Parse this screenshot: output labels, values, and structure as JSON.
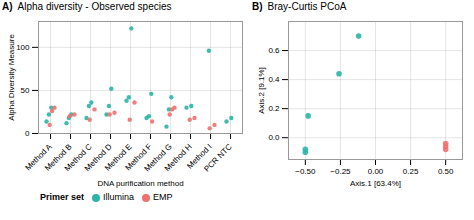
{
  "chart_data": [
    {
      "type": "strip",
      "title": "Alpha diversity - Observed species",
      "annotations": [
        "A)"
      ],
      "xlabel": "DNA purification method",
      "ylabel": "Alpha Diversity Measure",
      "categories": [
        "Method A",
        "Method B",
        "Method C",
        "Method D",
        "Method E",
        "Method F",
        "Method G",
        "Method H",
        "Method I",
        "PCR NTC"
      ],
      "series": [
        {
          "name": "Illumina",
          "color": "#2ab5a5",
          "values": [
            [
              14,
              22,
              30
            ],
            [
              12,
              18,
              22
            ],
            [
              18,
              32,
              36
            ],
            [
              22,
              32,
              52
            ],
            [
              38,
              42,
              122
            ],
            [
              18,
              20,
              46
            ],
            [
              8,
              28,
              42
            ],
            [
              30,
              32
            ],
            [
              96
            ],
            [
              14,
              18
            ]
          ]
        },
        {
          "name": "EMP",
          "color": "#f07070",
          "values": [
            [
              10,
              26,
              30
            ],
            [
              20,
              22
            ],
            [
              16,
              28
            ],
            [
              22,
              24
            ],
            [
              16,
              36
            ],
            [
              14
            ],
            [
              22,
              28,
              30
            ],
            [
              16,
              18
            ],
            [
              6,
              10
            ],
            []
          ]
        }
      ],
      "ylim": [
        0,
        130
      ],
      "yticks": [
        0,
        50,
        100
      ],
      "grid": true,
      "legend": "bottom",
      "legend_title": "Primer set"
    },
    {
      "type": "scatter",
      "title": "Bray-Curtis PCoA",
      "annotations": [
        "B)"
      ],
      "xlabel": "Axis.1 [63.4%]",
      "ylabel": "Axis.2 [9.1%]",
      "series": [
        {
          "name": "Illumina",
          "color": "#2ab5a5",
          "x": [
            -0.5,
            -0.5,
            -0.48,
            -0.26,
            -0.12
          ],
          "values": [
            -0.1,
            -0.08,
            0.15,
            0.44,
            0.7
          ]
        },
        {
          "name": "EMP",
          "color": "#f07070",
          "x": [
            0.5,
            0.5,
            0.5
          ],
          "values": [
            -0.04,
            -0.06,
            -0.08
          ]
        }
      ],
      "xlim": [
        -0.62,
        0.62
      ],
      "ylim": [
        -0.15,
        0.8
      ],
      "xticks": [
        {
          "value": -0.5,
          "label": "−0.50"
        },
        {
          "value": -0.25,
          "label": "−0.25"
        },
        {
          "value": 0,
          "label": "0.00"
        },
        {
          "value": 0.25,
          "label": "0.25"
        },
        {
          "value": 0.5,
          "label": "0.50"
        }
      ],
      "yticks": [
        {
          "value": 0,
          "label": "0.0"
        },
        0.2,
        0.4,
        0.6
      ],
      "grid": true
    }
  ]
}
